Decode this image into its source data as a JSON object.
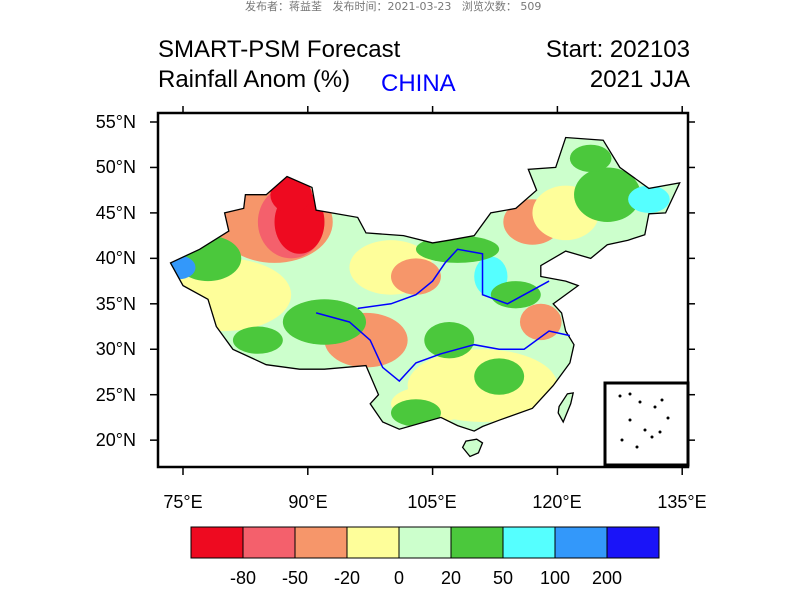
{
  "page_meta": "发布者：蒋益荃   发布时间：2021-03-23   浏览次数： 509",
  "title": {
    "line1": "SMART-PSM Forecast",
    "line2": "Rainfall Anom (%)",
    "region": "CHINA",
    "start": "Start: 202103",
    "season": "2021 JJA"
  },
  "map": {
    "lon_ticks": [
      "75°E",
      "90°E",
      "105°E",
      "120°E",
      "135°E"
    ],
    "lat_ticks": [
      "55°N",
      "50°N",
      "45°N",
      "40°N",
      "35°N",
      "30°N",
      "25°N",
      "20°N"
    ],
    "river_color": "#0000ff",
    "has_south_china_sea_inset": true
  },
  "colorbar": {
    "colors": [
      "#ee0a20",
      "#f4606c",
      "#f6966a",
      "#fefe9a",
      "#ccffcc",
      "#4bc83c",
      "#55ffff",
      "#3398fa",
      "#1a14f8"
    ],
    "labels": [
      "-80",
      "-50",
      "-20",
      "0",
      "20",
      "50",
      "100",
      "200"
    ]
  }
}
